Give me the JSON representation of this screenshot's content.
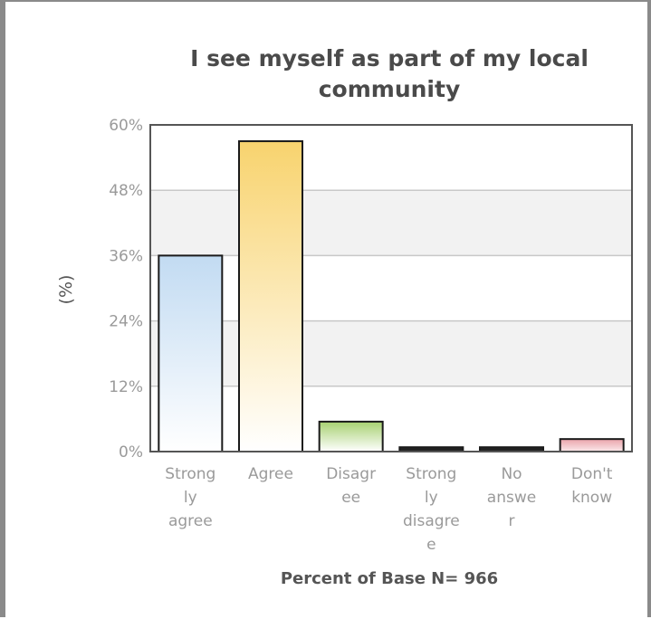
{
  "chart_data": {
    "type": "bar",
    "title_lines": [
      "I see myself as part of my local",
      "community"
    ],
    "ylabel": "(%)",
    "xlabel": "Percent of Base N= 966",
    "ylim": [
      0,
      60
    ],
    "y_ticks": [
      0,
      12,
      24,
      36,
      48,
      60
    ],
    "y_tick_labels": [
      "0%",
      "12%",
      "24%",
      "36%",
      "48%",
      "60%"
    ],
    "categories": [
      "Strongly agree",
      "Agree",
      "Disagree",
      "Strongly disagree",
      "No answer",
      "Don't know"
    ],
    "category_label_lines": [
      [
        "Strong",
        "ly",
        "agree"
      ],
      [
        "Agree"
      ],
      [
        "Disagr",
        "ee"
      ],
      [
        "Strong",
        "ly",
        "disagre",
        "e"
      ],
      [
        "No",
        "answe",
        "r"
      ],
      [
        "Don't",
        "know"
      ]
    ],
    "values": [
      36,
      57,
      5.5,
      0.8,
      0.8,
      2.3
    ],
    "bar_colors": [
      [
        "#c2dbf2",
        "#ffffff"
      ],
      [
        "#f8d36e",
        "#ffffff"
      ],
      [
        "#a7d070",
        "#ffffff"
      ],
      [
        "#222222",
        "#222222"
      ],
      [
        "#222222",
        "#222222"
      ],
      [
        "#e9a3aa",
        "#fbe9eb"
      ]
    ],
    "grid": true,
    "legend": "none"
  }
}
